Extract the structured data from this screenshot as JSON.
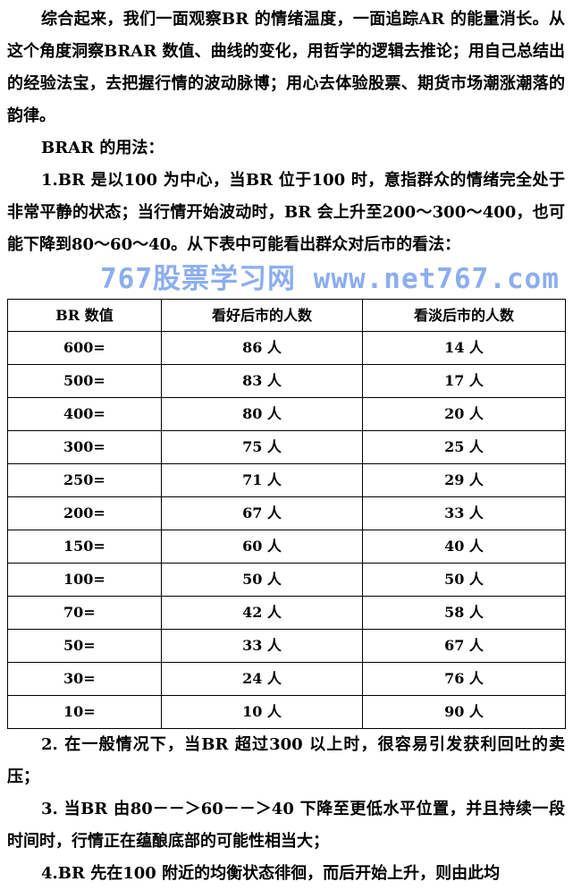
{
  "intro": {
    "paragraph": "综合起来，我们一面观察BR 的情绪温度，一面追踪AR 的能量消长。从这个角度洞察BRAR 数值、曲线的变化，用哲学的逻辑去推论；用自己总结出的经验法宝，去把握行情的波动脉博；用心去体验股票、期货市场潮涨潮落的韵律。",
    "usage_heading": "BRAR 的用法：",
    "point1": "1.BR 是以100 为中心，当BR 位于100 时，意指群众的情绪完全处于非常平静的状态；当行情开始波动时，BR 会上升至200～300～400，也可能下降到80～60～40。从下表中可能看出群众对后市的看法："
  },
  "table": {
    "headers": [
      "BR 数值",
      "看好后市的人数",
      "看淡后市的人数"
    ],
    "rows": [
      [
        "600=",
        "86 人",
        "14 人"
      ],
      [
        "500=",
        "83 人",
        "17 人"
      ],
      [
        "400=",
        "80 人",
        "20 人"
      ],
      [
        "300=",
        "75 人",
        "25 人"
      ],
      [
        "250=",
        "71 人",
        "29 人"
      ],
      [
        "200=",
        "67 人",
        "33 人"
      ],
      [
        "150=",
        "60 人",
        "40 人"
      ],
      [
        "100=",
        "50 人",
        "50 人"
      ],
      [
        "70=",
        "42 人",
        "58 人"
      ],
      [
        "50=",
        "33 人",
        "67 人"
      ],
      [
        "30=",
        "24 人",
        "76 人"
      ],
      [
        "10=",
        "10 人",
        "90 人"
      ]
    ]
  },
  "watermark": "767股票学习网 www.net767.com",
  "points": {
    "point2": "2. 在一般情况下，当BR 超过300 以上时，很容易引发获利回吐的卖压；",
    "point3": "3. 当BR 由80－－＞60－－＞40 下降至更低水平位置，并且持续一段时间时，行情正在蕴酿底部的可能性相当大；",
    "point4": "4.BR 先在100 附近的均衡状态徘徊，而后开始上升，则由此均"
  }
}
